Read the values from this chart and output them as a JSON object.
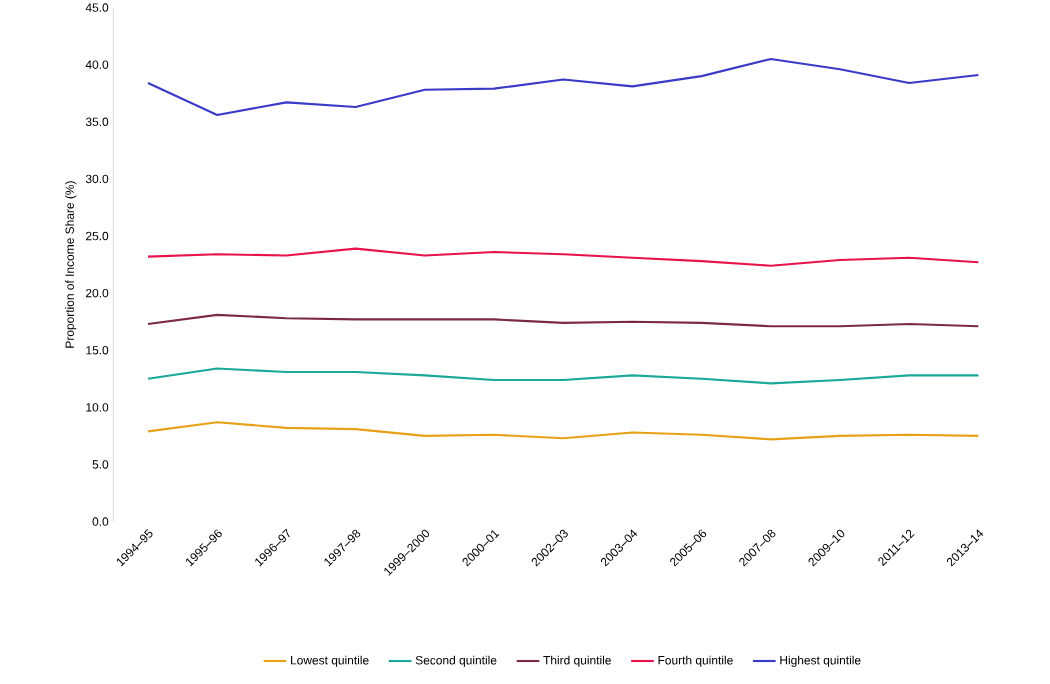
{
  "chart_data": {
    "type": "line",
    "ylabel": "Proportion of Income  Share (%)",
    "categories": [
      "1994–95",
      "1995–96",
      "1996–97",
      "1997–98",
      "1999–2000",
      "2000–01",
      "2002–03",
      "2003–04",
      "2005–06",
      "2007–08",
      "2009–10",
      "2011–12",
      "2013–14"
    ],
    "series": [
      {
        "name": "Lowest quintile",
        "color": "#e8a019",
        "values": [
          7.9,
          8.7,
          8.2,
          8.1,
          7.5,
          7.6,
          7.3,
          7.8,
          7.6,
          7.2,
          7.5,
          7.6,
          7.5
        ]
      },
      {
        "name": "Second quintile",
        "color": "#1aa89a",
        "values": [
          12.5,
          13.4,
          13.1,
          13.1,
          12.8,
          12.4,
          12.4,
          12.8,
          12.5,
          12.1,
          12.4,
          12.8,
          12.8
        ]
      },
      {
        "name": "Third quintile",
        "color": "#7b2a46",
        "values": [
          17.3,
          18.1,
          17.8,
          17.7,
          17.7,
          17.7,
          17.4,
          17.5,
          17.4,
          17.1,
          17.1,
          17.3,
          17.1
        ]
      },
      {
        "name": "Fourth quintile",
        "color": "#e8134b",
        "values": [
          23.2,
          23.4,
          23.3,
          23.9,
          23.3,
          23.6,
          23.4,
          23.1,
          22.8,
          22.4,
          22.9,
          23.1,
          22.7
        ]
      },
      {
        "name": "Highest quintile",
        "color": "#3a3ac8",
        "values": [
          38.4,
          35.6,
          36.7,
          36.3,
          37.8,
          37.9,
          38.7,
          38.1,
          39.0,
          40.5,
          39.6,
          38.4,
          39.1
        ]
      }
    ],
    "ylim": [
      0,
      45
    ],
    "yticks": [
      {
        "value": 0,
        "label": "0.0"
      },
      {
        "value": 5,
        "label": "5.0"
      },
      {
        "value": 10,
        "label": "10.0"
      },
      {
        "value": 15,
        "label": "15.0"
      },
      {
        "value": 20,
        "label": "20.0"
      },
      {
        "value": 25,
        "label": "25.0"
      },
      {
        "value": 30,
        "label": "30.0"
      },
      {
        "value": 35,
        "label": "35.0"
      },
      {
        "value": 40,
        "label": "40.0"
      },
      {
        "value": 45,
        "label": "45.0"
      }
    ],
    "legend": "bottom",
    "marker": "none",
    "line_style": "solid",
    "grid": false
  }
}
